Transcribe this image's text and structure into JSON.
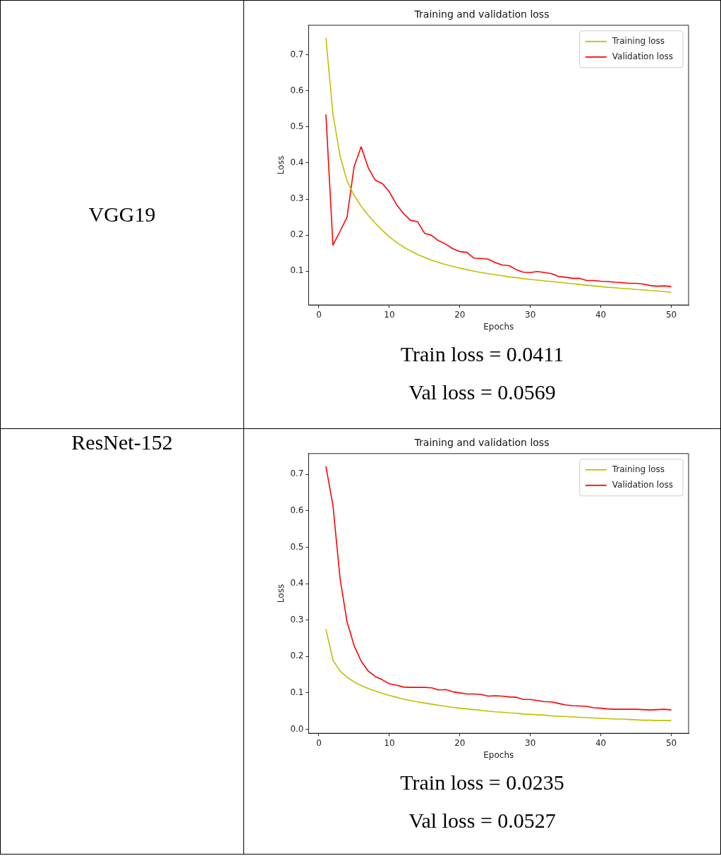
{
  "chart_data": [
    {
      "type": "line",
      "title": "Training and validation loss",
      "xlabel": "Epochs",
      "ylabel": "Loss",
      "x": [
        1,
        2,
        3,
        4,
        5,
        6,
        7,
        8,
        9,
        10,
        11,
        12,
        13,
        14,
        15,
        16,
        17,
        18,
        19,
        20,
        21,
        22,
        23,
        24,
        25,
        26,
        27,
        28,
        29,
        30,
        31,
        32,
        33,
        34,
        35,
        36,
        37,
        38,
        39,
        40,
        41,
        42,
        43,
        44,
        45,
        46,
        47,
        48,
        49,
        50
      ],
      "series": [
        {
          "name": "Training loss",
          "color": "#bfbf00",
          "values": [
            0.747,
            0.535,
            0.42,
            0.35,
            0.31,
            0.28,
            0.255,
            0.233,
            0.213,
            0.195,
            0.18,
            0.167,
            0.156,
            0.146,
            0.138,
            0.13,
            0.124,
            0.118,
            0.113,
            0.108,
            0.104,
            0.1,
            0.096,
            0.093,
            0.09,
            0.087,
            0.084,
            0.082,
            0.079,
            0.077,
            0.075,
            0.073,
            0.071,
            0.069,
            0.067,
            0.065,
            0.063,
            0.061,
            0.059,
            0.057,
            0.055,
            0.054,
            0.052,
            0.051,
            0.049,
            0.048,
            0.046,
            0.045,
            0.043,
            0.041
          ]
        },
        {
          "name": "Validation loss",
          "color": "#ff0000",
          "values": [
            0.535,
            0.172,
            0.21,
            0.25,
            0.39,
            0.445,
            0.387,
            0.352,
            0.343,
            0.32,
            0.285,
            0.26,
            0.241,
            0.237,
            0.205,
            0.199,
            0.184,
            0.175,
            0.162,
            0.154,
            0.152,
            0.136,
            0.135,
            0.133,
            0.124,
            0.117,
            0.115,
            0.104,
            0.097,
            0.096,
            0.099,
            0.096,
            0.093,
            0.085,
            0.083,
            0.08,
            0.08,
            0.074,
            0.074,
            0.072,
            0.071,
            0.069,
            0.068,
            0.066,
            0.066,
            0.064,
            0.06,
            0.058,
            0.059,
            0.057
          ]
        }
      ],
      "xlim": [
        -1.45,
        52.45
      ],
      "xticks": [
        0,
        10,
        20,
        30,
        40,
        50
      ],
      "ylim": [
        0.006,
        0.782
      ],
      "yticks": [
        0.1,
        0.2,
        0.3,
        0.4,
        0.5,
        0.6,
        0.7
      ],
      "grid": false,
      "legend": "top right",
      "marker": "none",
      "line_style": "solid",
      "annotations": [
        "VGG19",
        "Train loss = 0.0411",
        "Val loss = 0.0569"
      ]
    },
    {
      "type": "line",
      "title": "Training and validation loss",
      "xlabel": "Epochs",
      "ylabel": "Loss",
      "x": [
        1,
        2,
        3,
        4,
        5,
        6,
        7,
        8,
        9,
        10,
        11,
        12,
        13,
        14,
        15,
        16,
        17,
        18,
        19,
        20,
        21,
        22,
        23,
        24,
        25,
        26,
        27,
        28,
        29,
        30,
        31,
        32,
        33,
        34,
        35,
        36,
        37,
        38,
        39,
        40,
        41,
        42,
        43,
        44,
        45,
        46,
        47,
        48,
        49,
        50
      ],
      "series": [
        {
          "name": "Training loss",
          "color": "#bfbf00",
          "values": [
            0.275,
            0.19,
            0.16,
            0.143,
            0.13,
            0.12,
            0.112,
            0.105,
            0.099,
            0.093,
            0.088,
            0.083,
            0.079,
            0.075,
            0.072,
            0.069,
            0.066,
            0.063,
            0.06,
            0.058,
            0.056,
            0.054,
            0.052,
            0.05,
            0.048,
            0.047,
            0.045,
            0.044,
            0.042,
            0.041,
            0.04,
            0.039,
            0.037,
            0.036,
            0.035,
            0.034,
            0.033,
            0.032,
            0.031,
            0.03,
            0.029,
            0.028,
            0.028,
            0.027,
            0.026,
            0.025,
            0.025,
            0.024,
            0.024,
            0.024
          ]
        },
        {
          "name": "Validation loss",
          "color": "#ff0000",
          "values": [
            0.722,
            0.615,
            0.415,
            0.295,
            0.23,
            0.187,
            0.16,
            0.145,
            0.136,
            0.125,
            0.121,
            0.116,
            0.115,
            0.115,
            0.115,
            0.114,
            0.108,
            0.109,
            0.103,
            0.1,
            0.097,
            0.097,
            0.096,
            0.091,
            0.092,
            0.091,
            0.089,
            0.088,
            0.082,
            0.082,
            0.079,
            0.076,
            0.075,
            0.071,
            0.067,
            0.065,
            0.064,
            0.063,
            0.059,
            0.058,
            0.056,
            0.055,
            0.055,
            0.055,
            0.055,
            0.054,
            0.053,
            0.054,
            0.055,
            0.053
          ]
        }
      ],
      "xlim": [
        -1.45,
        52.45
      ],
      "xticks": [
        0,
        10,
        20,
        30,
        40,
        50
      ],
      "ylim": [
        -0.011,
        0.757
      ],
      "yticks": [
        {
          "value": 0,
          "label": "0.0"
        },
        0.1,
        0.2,
        0.3,
        0.4,
        0.5,
        0.6,
        0.7
      ],
      "grid": false,
      "legend": "top right",
      "marker": "none",
      "line_style": "solid",
      "annotations": [
        "ResNet-152",
        "Train loss = 0.0235",
        "Val loss = 0.0527"
      ]
    }
  ]
}
